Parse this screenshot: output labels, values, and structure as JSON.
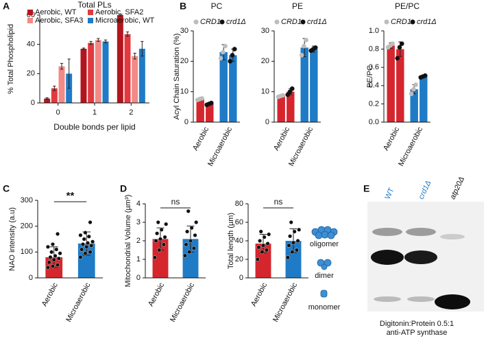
{
  "chart_data": [
    {
      "type": "bar",
      "panel": "A",
      "title": "Total PLs",
      "ylabel": "% Total Phospholipid",
      "xlabel": "Double bonds per lipid",
      "categories": [
        "0",
        "1",
        "2"
      ],
      "series": [
        {
          "name": "Aerobic, WT",
          "color": "#b3151e",
          "values": [
            3,
            37,
            60
          ],
          "errors": [
            0.5,
            0.5,
            0.5
          ]
        },
        {
          "name": "Aerobic, SFA2",
          "color": "#e2393f",
          "values": [
            10,
            41,
            47
          ],
          "errors": [
            1.5,
            1,
            1.5
          ]
        },
        {
          "name": "Aerobic, SFA3",
          "color": "#f28a85",
          "values": [
            25,
            43,
            32
          ],
          "errors": [
            2,
            1,
            2
          ]
        },
        {
          "name": "Microaerobic, WT",
          "color": "#1f7bc6",
          "values": [
            20,
            42,
            37
          ],
          "errors": [
            10,
            1,
            5
          ]
        }
      ],
      "ylim": [
        0,
        60
      ],
      "yticks": [
        0,
        20,
        40,
        60
      ]
    },
    {
      "type": "bar",
      "panel": "B",
      "title": "PC",
      "ylabel": "Acyl Chain Saturation (%)",
      "categories": [
        "Aerobic",
        "Microaerobic"
      ],
      "category_colors": [
        "#d5262e",
        "#1f7bc6"
      ],
      "series": [
        {
          "name": "CRD1",
          "color": "#bdbdbd",
          "values": [
            7.5,
            23
          ],
          "errors": [
            0.4,
            2.5
          ],
          "points": [
            [
              7.3,
              7.6,
              7.8
            ],
            [
              21,
              23,
              25
            ]
          ]
        },
        {
          "name": "crd1Δ",
          "color": "#111111",
          "values": [
            6,
            22
          ],
          "errors": [
            0.4,
            2
          ],
          "points": [
            [
              5.7,
              6,
              6.3
            ],
            [
              20,
              22,
              24
            ]
          ]
        }
      ],
      "ylim": [
        0,
        30
      ],
      "yticks": [
        0,
        10,
        20,
        30
      ]
    },
    {
      "type": "bar",
      "title": "PE",
      "categories": [
        "Aerobic",
        "Microaerobic"
      ],
      "category_colors": [
        "#d5262e",
        "#1f7bc6"
      ],
      "series": [
        {
          "name": "CRD1",
          "color": "#bdbdbd",
          "values": [
            8.5,
            24.5
          ],
          "errors": [
            0.4,
            3
          ],
          "points": [
            [
              8.3,
              8.6,
              8.8
            ],
            [
              22,
              25,
              27
            ]
          ]
        },
        {
          "name": "crd1Δ",
          "color": "#111111",
          "values": [
            10,
            24
          ],
          "errors": [
            1,
            1
          ],
          "points": [
            [
              9,
              10,
              11
            ],
            [
              23.5,
              24,
              24.5
            ]
          ]
        }
      ],
      "ylim": [
        0,
        30
      ],
      "yticks": [
        0,
        10,
        20,
        30
      ]
    },
    {
      "type": "bar",
      "title": "PE/PC",
      "ylabel": "PE/PC",
      "categories": [
        "Aerobic",
        "Microaerobic"
      ],
      "category_colors": [
        "#d5262e",
        "#1f7bc6"
      ],
      "series": [
        {
          "name": "CRD1",
          "color": "#bdbdbd",
          "values": [
            0.84,
            0.36
          ],
          "errors": [
            0.03,
            0.05
          ],
          "points": [
            [
              0.82,
              0.84,
              0.86
            ],
            [
              0.31,
              0.36,
              0.41
            ]
          ]
        },
        {
          "name": "crd1Δ",
          "color": "#111111",
          "values": [
            0.8,
            0.5
          ],
          "errors": [
            0.08,
            0.01
          ],
          "points": [
            [
              0.7,
              0.82,
              0.86
            ],
            [
              0.49,
              0.5,
              0.51
            ]
          ]
        }
      ],
      "ylim": [
        0,
        1
      ],
      "yticks": [
        {
          "value": 0,
          "label": "0.0"
        },
        {
          "value": 0.2,
          "label": "0.2"
        },
        {
          "value": 0.4,
          "label": "0.4"
        },
        {
          "value": 0.6,
          "label": "0.6"
        },
        {
          "value": 0.8,
          "label": "0.8"
        },
        {
          "value": 1,
          "label": "1.0"
        }
      ]
    },
    {
      "type": "bar",
      "panel": "C",
      "ylabel": "NAO intensity (a.u)",
      "annotation": "**",
      "categories": [
        "Aerobic",
        "Microaerobic"
      ],
      "category_colors": [
        "#d5262e",
        "#1f7bc6"
      ],
      "series": [
        {
          "color": "#111111",
          "values": [
            80,
            133
          ],
          "errors": [
            40,
            45
          ],
          "points": [
            [
              40,
              45,
              50,
              60,
              70,
              75,
              80,
              85,
              95,
              100,
              110,
              120,
              130,
              170
            ],
            [
              80,
              95,
              100,
              110,
              120,
              125,
              130,
              135,
              140,
              150,
              160,
              165,
              175,
              215
            ]
          ]
        }
      ],
      "ylim": [
        0,
        300
      ],
      "yticks": [
        0,
        100,
        200,
        300
      ]
    },
    {
      "type": "bar",
      "panel": "D",
      "ylabel": "Mitochondrial Volume (µm³)",
      "annotation": "ns",
      "categories": [
        "Aerobic",
        "Microaerobic"
      ],
      "category_colors": [
        "#d5262e",
        "#1f7bc6"
      ],
      "series": [
        {
          "color": "#111111",
          "values": [
            2.1,
            2.1
          ],
          "errors": [
            0.6,
            0.7
          ],
          "points": [
            [
              1.1,
              1.5,
              1.8,
              2.0,
              2.1,
              2.2,
              2.4,
              2.6,
              2.9,
              3.0
            ],
            [
              1.2,
              1.4,
              1.6,
              1.8,
              2.0,
              2.3,
              2.5,
              2.7,
              3.0,
              3.6
            ]
          ]
        }
      ],
      "ylim": [
        0,
        4
      ],
      "yticks": [
        0,
        1,
        2,
        3,
        4
      ]
    },
    {
      "type": "bar",
      "ylabel": "Total length (µm)",
      "annotation": "ns",
      "categories": [
        "Aerobic",
        "Microaerobic"
      ],
      "category_colors": [
        "#d5262e",
        "#1f7bc6"
      ],
      "series": [
        {
          "color": "#111111",
          "values": [
            37,
            40
          ],
          "errors": [
            10,
            13
          ],
          "points": [
            [
              20,
              28,
              30,
              33,
              35,
              37,
              40,
              44,
              47,
              50
            ],
            [
              22,
              28,
              30,
              35,
              38,
              40,
              45,
              50,
              52,
              60
            ]
          ]
        }
      ],
      "ylim": [
        0,
        80
      ],
      "yticks": [
        0,
        20,
        40,
        60,
        80
      ]
    }
  ],
  "blot": {
    "panel": "E",
    "lanes": [
      "WT",
      "crd1Δ",
      "atp20Δ"
    ],
    "species": [
      "oligomer",
      "dimer",
      "monomer"
    ],
    "caption": [
      "Digitonin:Protein 0.5:1",
      "anti-ATP synthase"
    ]
  }
}
